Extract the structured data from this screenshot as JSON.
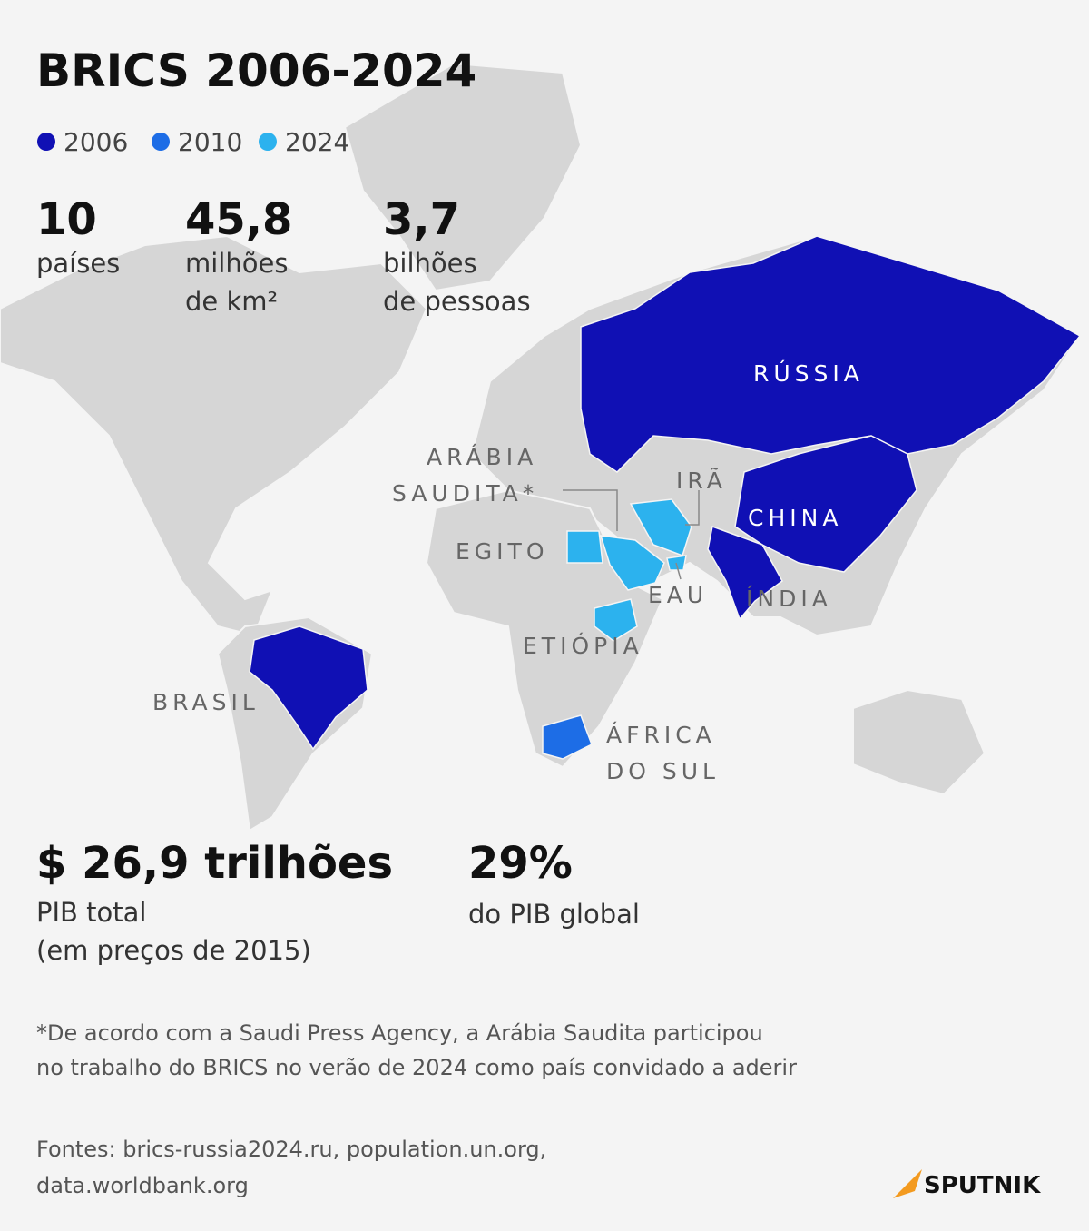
{
  "header": {
    "title": "BRICS 2006-2024"
  },
  "legend": [
    {
      "label": "2006",
      "color": "#1010b4"
    },
    {
      "label": "2010",
      "color": "#1d6de6"
    },
    {
      "label": "2024",
      "color": "#2cb2ee"
    }
  ],
  "stats": [
    {
      "value": "10",
      "lines": [
        "países"
      ]
    },
    {
      "value": "45,8",
      "lines": [
        "milhões",
        "de km²"
      ]
    },
    {
      "value": "3,7",
      "lines": [
        "bilhões",
        "de pessoas"
      ]
    }
  ],
  "map": {
    "labels": [
      {
        "lines": [
          "RÚSSIA"
        ]
      },
      {
        "lines": [
          "CHINA"
        ]
      },
      {
        "lines": [
          "ÍNDIA"
        ]
      },
      {
        "lines": [
          "IRÃ"
        ]
      },
      {
        "lines": [
          "ARÁBIA",
          "SAUDITA*"
        ]
      },
      {
        "lines": [
          "EGITO"
        ]
      },
      {
        "lines": [
          "EAU"
        ]
      },
      {
        "lines": [
          "ETIÓPIA"
        ]
      },
      {
        "lines": [
          "BRASIL"
        ]
      },
      {
        "lines": [
          "ÁFRICA",
          "DO SUL"
        ]
      }
    ]
  },
  "economy": [
    {
      "value": "$ 26,9 trilhões",
      "lines": [
        "PIB total",
        "(em preços de 2015)"
      ]
    },
    {
      "value": "29%",
      "lines": [
        "do PIB global"
      ]
    }
  ],
  "footnote": [
    "*De acordo com a Saudi Press Agency, a Arábia Saudita participou",
    "no trabalho do BRICS no verão de 2024 como país convidado a aderir"
  ],
  "sources": [
    "Fontes: brics-russia2024.ru, population.un.org,",
    "data.worldbank.org"
  ],
  "logo": "SPUTNIK"
}
